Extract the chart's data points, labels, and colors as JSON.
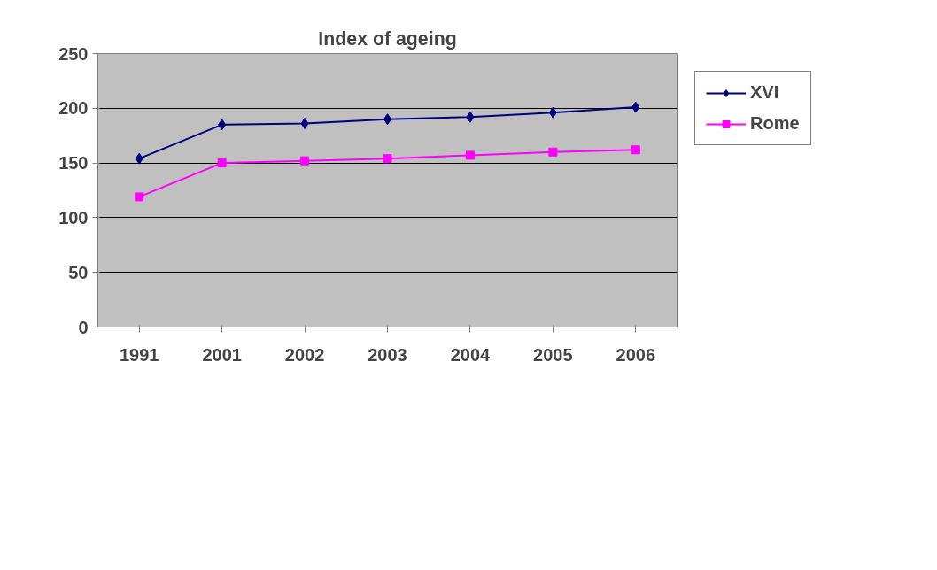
{
  "chart_data": {
    "type": "line",
    "title": "Index of ageing",
    "categories": [
      "1991",
      "2001",
      "2002",
      "2003",
      "2004",
      "2005",
      "2006"
    ],
    "series": [
      {
        "name": "XVI",
        "color": "#000080",
        "marker": "diamond",
        "values": [
          154,
          185,
          186,
          190,
          192,
          196,
          201
        ]
      },
      {
        "name": "Rome",
        "color": "#ff00ff",
        "marker": "square",
        "values": [
          119,
          150,
          152,
          154,
          157,
          160,
          162
        ]
      }
    ],
    "ylim": [
      0,
      250
    ],
    "yticks": [
      0,
      50,
      100,
      150,
      200,
      250
    ],
    "grid": "y",
    "legend": "right",
    "line_style": "solid"
  }
}
